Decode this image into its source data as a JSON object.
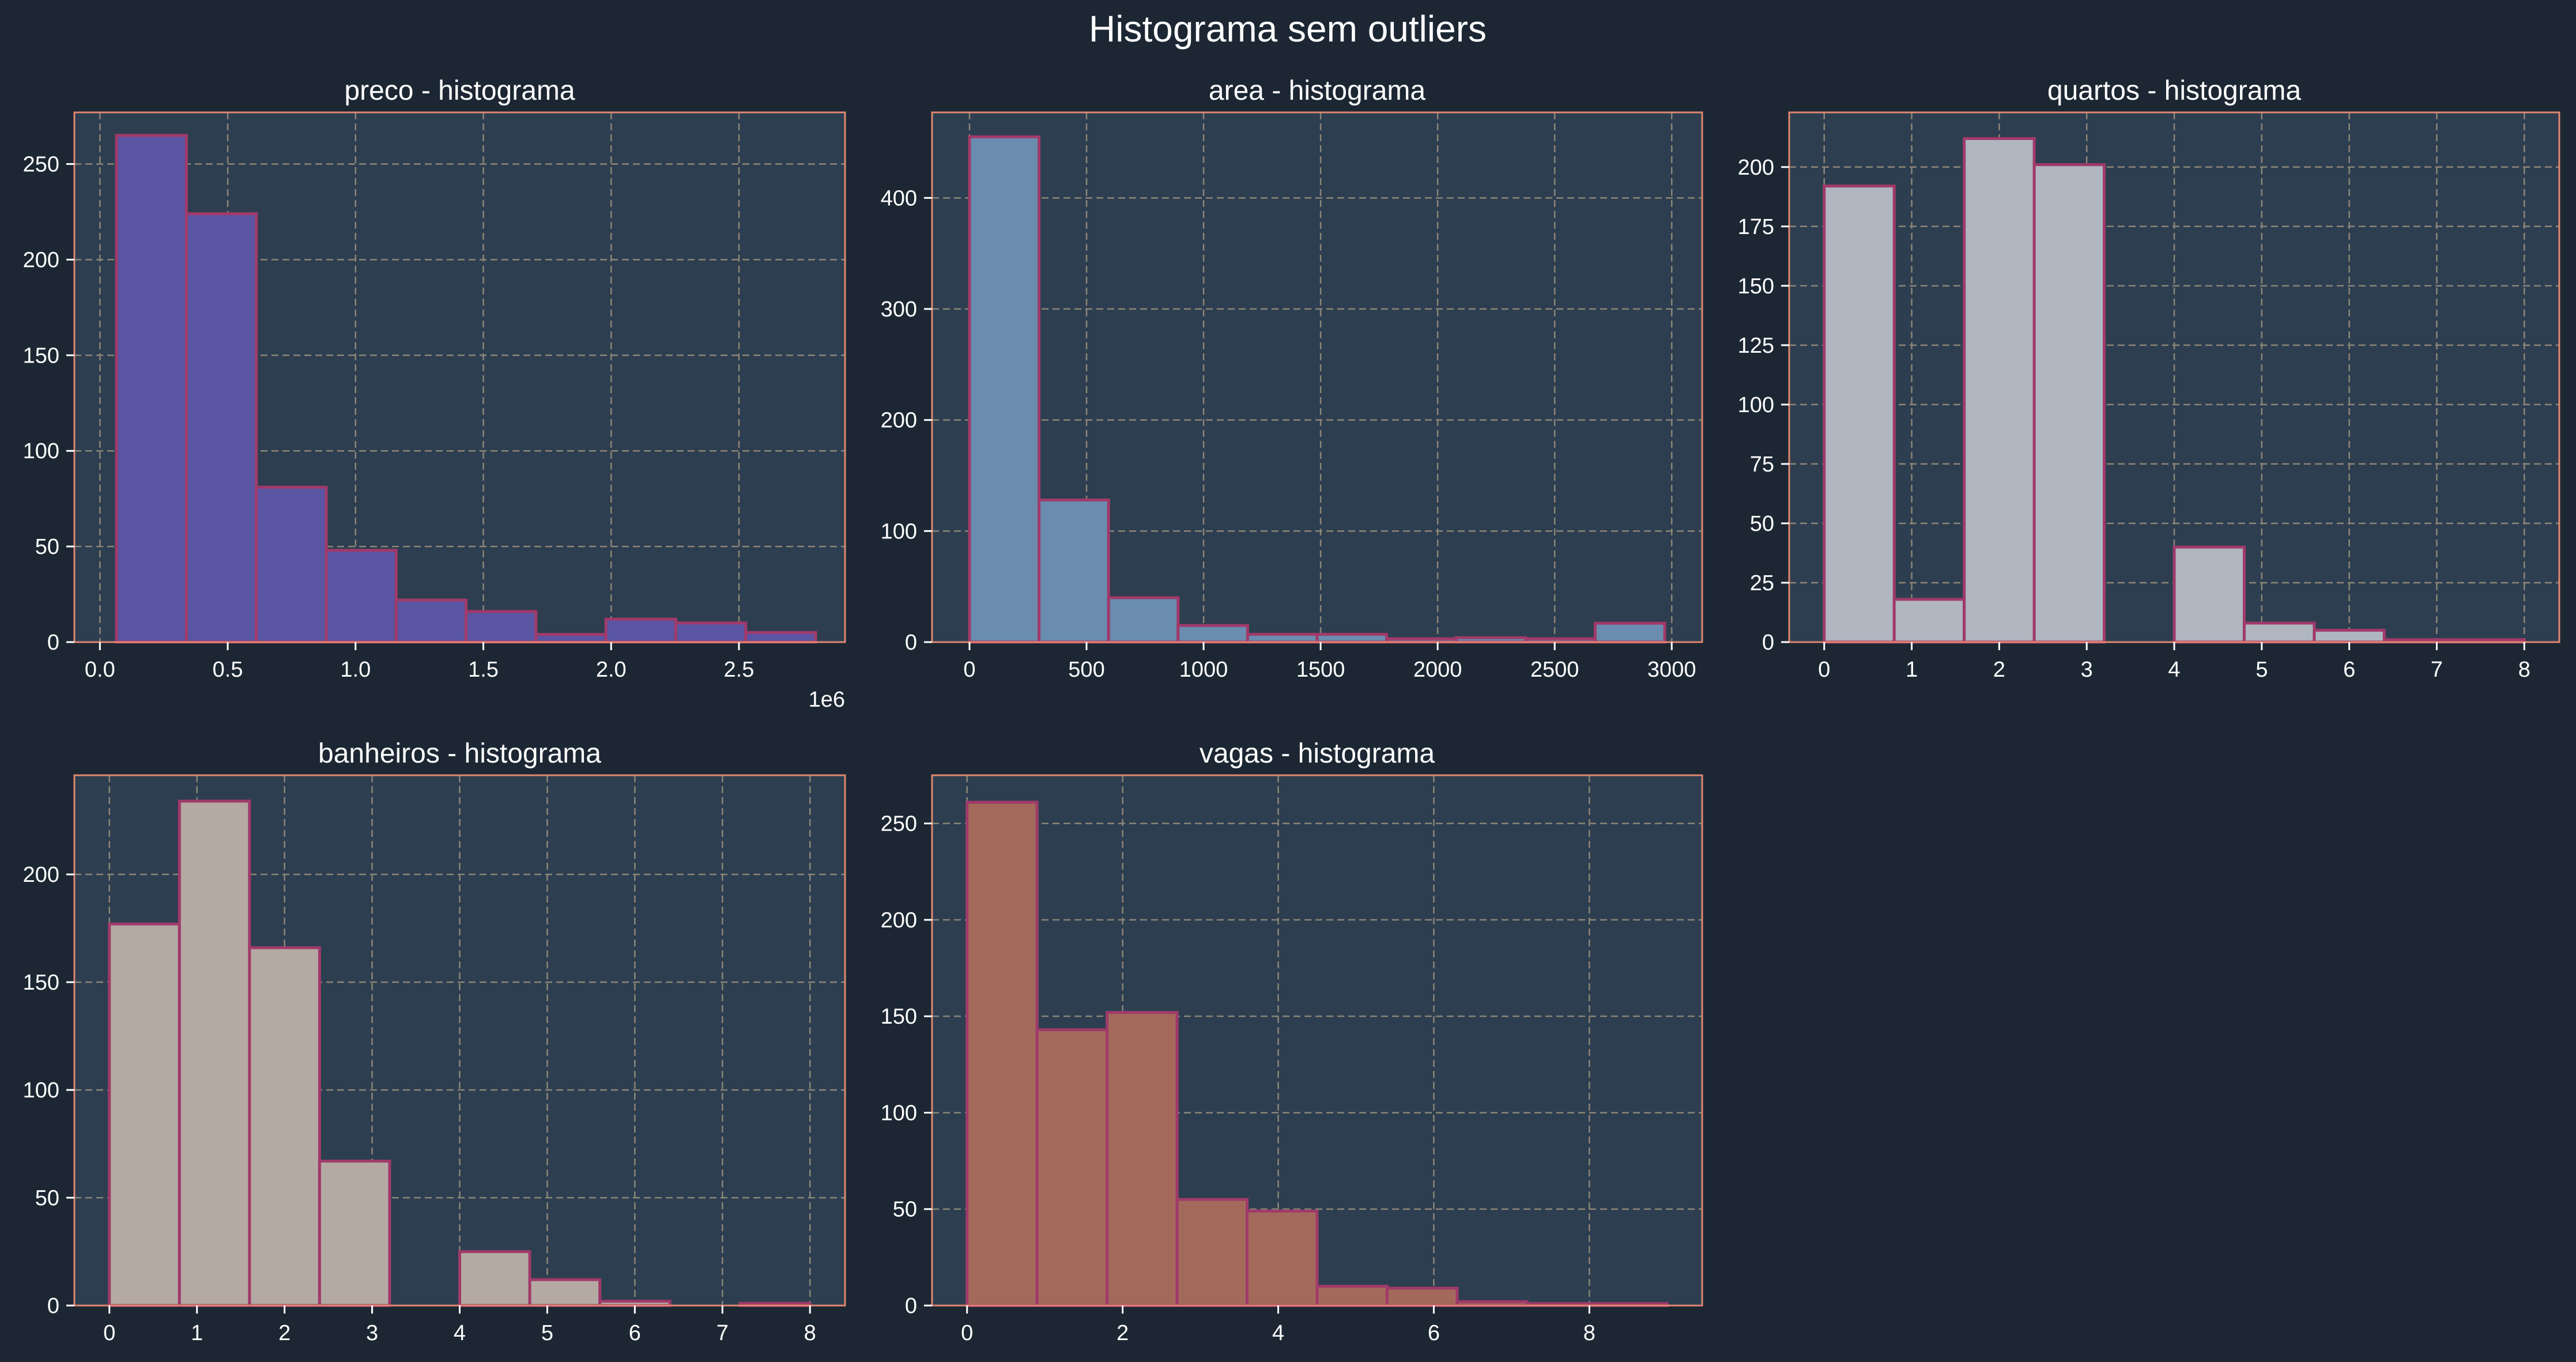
{
  "figure": {
    "title": "Histograma sem outliers",
    "background": "#1c2733",
    "axes_background": "#2d3e50",
    "spine_color": "#e08770",
    "grid_color": "#8c8577",
    "bar_edge_color": "#a03a6a",
    "text_color": "#ffffff"
  },
  "chart_data": [
    {
      "type": "bar",
      "title": "preco - histograma",
      "xlabel": "",
      "ylabel": "",
      "color": "#5a55a3",
      "bin_edges": [
        65000,
        338500,
        612000,
        885500,
        1159000,
        1432500,
        1706000,
        1979500,
        2253000,
        2526500,
        2800000
      ],
      "values": [
        265,
        224,
        81,
        48,
        22,
        16,
        4,
        12,
        10,
        5
      ],
      "xlim": [
        -100000,
        2915000
      ],
      "ylim": [
        0,
        277
      ],
      "xticks": [
        0,
        500000,
        1000000,
        1500000,
        2000000,
        2500000
      ],
      "xtick_labels": [
        "0.0",
        "0.5",
        "1.0",
        "1.5",
        "2.0",
        "2.5"
      ],
      "yticks": [
        0,
        50,
        100,
        150,
        200,
        250
      ],
      "ytick_labels": [
        "0",
        "50",
        "100",
        "150",
        "200",
        "250"
      ],
      "offset_text": "1e6",
      "grid": true
    },
    {
      "type": "bar",
      "title": "area - histograma",
      "xlabel": "",
      "ylabel": "",
      "color": "#6a8caf",
      "bin_edges": [
        0,
        297,
        594,
        891,
        1188,
        1485,
        1782,
        2079,
        2376,
        2673,
        2970
      ],
      "values": [
        455,
        128,
        40,
        15,
        7,
        7,
        3,
        4,
        3,
        17
      ],
      "xlim": [
        -160,
        3130
      ],
      "ylim": [
        0,
        477
      ],
      "xticks": [
        0,
        500,
        1000,
        1500,
        2000,
        2500,
        3000
      ],
      "xtick_labels": [
        "0",
        "500",
        "1000",
        "1500",
        "2000",
        "2500",
        "3000"
      ],
      "yticks": [
        0,
        100,
        200,
        300,
        400
      ],
      "ytick_labels": [
        "0",
        "100",
        "200",
        "300",
        "400"
      ],
      "grid": true
    },
    {
      "type": "bar",
      "title": "quartos - histograma",
      "xlabel": "",
      "ylabel": "",
      "color": "#b0b6c0",
      "bin_edges": [
        0,
        0.8,
        1.6,
        2.4,
        3.2,
        4.0,
        4.8,
        5.6,
        6.4,
        7.2,
        8.0
      ],
      "values": [
        192,
        18,
        212,
        201,
        0,
        40,
        8,
        5,
        1,
        1
      ],
      "xlim": [
        -0.4,
        8.4
      ],
      "ylim": [
        0,
        223
      ],
      "xticks": [
        0,
        1,
        2,
        3,
        4,
        5,
        6,
        7,
        8
      ],
      "xtick_labels": [
        "0",
        "1",
        "2",
        "3",
        "4",
        "5",
        "6",
        "7",
        "8"
      ],
      "yticks": [
        0,
        25,
        50,
        75,
        100,
        125,
        150,
        175,
        200
      ],
      "ytick_labels": [
        "0",
        "25",
        "50",
        "75",
        "100",
        "125",
        "150",
        "175",
        "200"
      ],
      "grid": true
    },
    {
      "type": "bar",
      "title": "banheiros - histograma",
      "xlabel": "",
      "ylabel": "",
      "color": "#b4aaa3",
      "bin_edges": [
        0,
        0.8,
        1.6,
        2.4,
        3.2,
        4.0,
        4.8,
        5.6,
        6.4,
        7.2,
        8.0
      ],
      "values": [
        177,
        234,
        166,
        67,
        0,
        25,
        12,
        2,
        0,
        1
      ],
      "xlim": [
        -0.4,
        8.4
      ],
      "ylim": [
        0,
        246
      ],
      "xticks": [
        0,
        1,
        2,
        3,
        4,
        5,
        6,
        7,
        8
      ],
      "xtick_labels": [
        "0",
        "1",
        "2",
        "3",
        "4",
        "5",
        "6",
        "7",
        "8"
      ],
      "yticks": [
        0,
        50,
        100,
        150,
        200
      ],
      "ytick_labels": [
        "0",
        "50",
        "100",
        "150",
        "200"
      ],
      "grid": true
    },
    {
      "type": "bar",
      "title": "vagas - histograma",
      "xlabel": "",
      "ylabel": "",
      "color": "#a36a5c",
      "bin_edges": [
        0,
        0.9,
        1.8,
        2.7,
        3.6,
        4.5,
        5.4,
        6.3,
        7.2,
        8.1,
        9.0
      ],
      "values": [
        261,
        143,
        152,
        55,
        49,
        10,
        9,
        2,
        1,
        1
      ],
      "xlim": [
        -0.45,
        9.45
      ],
      "ylim": [
        0,
        275
      ],
      "xticks": [
        0,
        2,
        4,
        6,
        8
      ],
      "xtick_labels": [
        "0",
        "2",
        "4",
        "6",
        "8"
      ],
      "yticks": [
        0,
        50,
        100,
        150,
        200,
        250
      ],
      "ytick_labels": [
        "0",
        "50",
        "100",
        "150",
        "200",
        "250"
      ],
      "grid": true
    }
  ]
}
